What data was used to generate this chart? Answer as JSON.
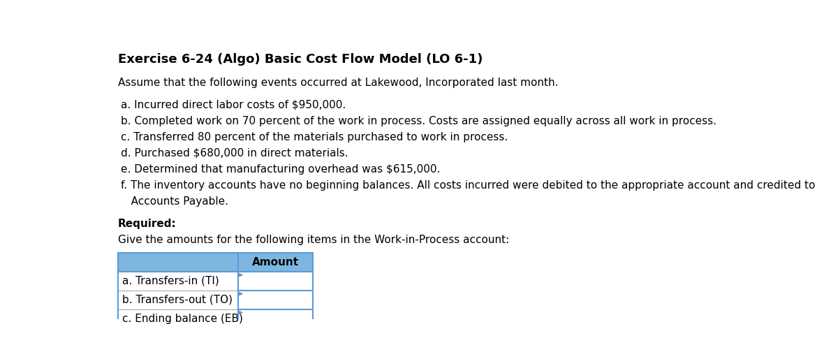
{
  "title": "Exercise 6-24 (Algo) Basic Cost Flow Model (LO 6-1)",
  "intro": "Assume that the following events occurred at Lakewood, Incorporated last month.",
  "items": [
    "a. Incurred direct labor costs of $950,000.",
    "b. Completed work on 70 percent of the work in process. Costs are assigned equally across all work in process.",
    "c. Transferred 80 percent of the materials purchased to work in process.",
    "d. Purchased $680,000 in direct materials.",
    "e. Determined that manufacturing overhead was $615,000.",
    "f. The inventory accounts have no beginning balances. All costs incurred were debited to the appropriate account and credited to",
    "   Accounts Payable."
  ],
  "required_label": "Required:",
  "required_text": "Give the amounts for the following items in the Work-in-Process account:",
  "table_header": "Amount",
  "table_rows": [
    "a. Transfers-in (TI)",
    "b. Transfers-out (TO)",
    "c. Ending balance (EB)"
  ],
  "header_bg_color": "#7EB6E0",
  "table_border_color_blue": "#5B9BD5",
  "table_border_color_gray": "#AAAAAA",
  "row_bg_color": "#FFFFFF",
  "text_color": "#000000",
  "background_color": "#FFFFFF",
  "title_fontsize": 13,
  "body_fontsize": 11
}
